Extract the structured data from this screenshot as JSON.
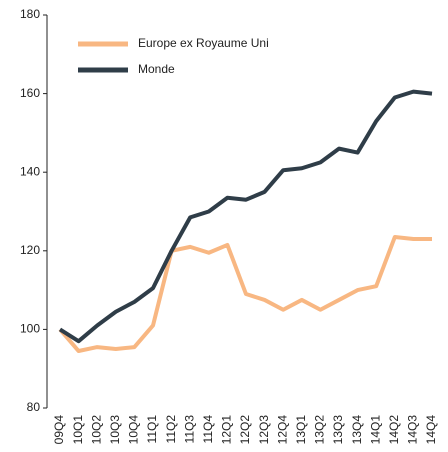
{
  "chart_data": {
    "type": "line",
    "categories": [
      "09Q4",
      "10Q1",
      "10Q2",
      "10Q3",
      "10Q4",
      "11Q1",
      "11Q2",
      "11Q3",
      "11Q4",
      "12Q1",
      "12Q2",
      "12Q3",
      "12Q4",
      "13Q1",
      "13Q2",
      "13Q3",
      "13Q4",
      "14Q1",
      "14Q2",
      "14Q3",
      "14Q4"
    ],
    "series": [
      {
        "name": "Europe ex Royaume Uni",
        "color": "#f8b782",
        "values": [
          100,
          94.5,
          95.5,
          95,
          95.5,
          101,
          120,
          121,
          119.5,
          121.5,
          109,
          107.5,
          105,
          107.5,
          105,
          107.5,
          110,
          111,
          123.5,
          123,
          123
        ]
      },
      {
        "name": "Monde",
        "color": "#2f3d48",
        "values": [
          100,
          97,
          101,
          104.5,
          107,
          110.5,
          120,
          128.5,
          130,
          133.5,
          133,
          135,
          140.5,
          141,
          142.5,
          146,
          145,
          153,
          159,
          160.5,
          160
        ]
      }
    ],
    "ylim": [
      80,
      180
    ],
    "yticks": [
      80,
      100,
      120,
      140,
      160,
      180
    ],
    "grid": false,
    "legend": "top-left"
  }
}
